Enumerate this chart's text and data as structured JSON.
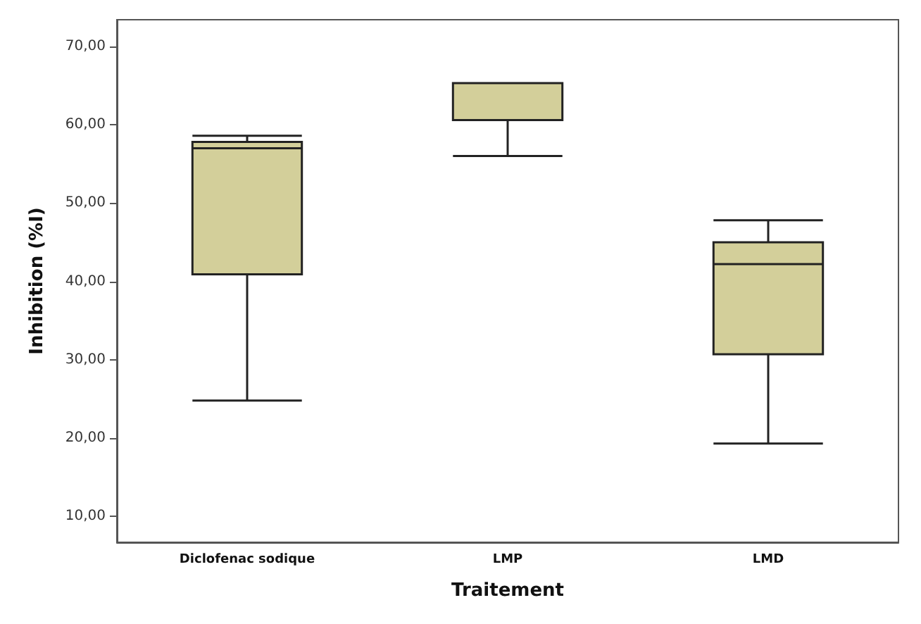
{
  "chart_data": {
    "type": "box",
    "xlabel": "Traitement",
    "ylabel": "Inhibition (%I)",
    "categories": [
      "Diclofenac sodique",
      "LMP",
      "LMD"
    ],
    "color": "#d3cf9a",
    "boxes": [
      {
        "low": 24.8,
        "q1": 40.9,
        "median": 57.0,
        "q3": 57.8,
        "high": 58.6
      },
      {
        "low": 56.0,
        "q1": 60.6,
        "median": 65.3,
        "q3": 65.3,
        "high": 65.3
      },
      {
        "low": 19.3,
        "q1": 30.7,
        "median": 42.2,
        "q3": 45.0,
        "high": 47.8
      }
    ],
    "ylim": [
      6.7,
      73.4
    ],
    "yticks": [
      {
        "value": 10,
        "label": "10,00"
      },
      {
        "value": 20,
        "label": "20,00"
      },
      {
        "value": 30,
        "label": "30,00"
      },
      {
        "value": 40,
        "label": "40,00"
      },
      {
        "value": 50,
        "label": "50,00"
      },
      {
        "value": 60,
        "label": "60,00"
      },
      {
        "value": 70,
        "label": "70,00"
      }
    ]
  }
}
